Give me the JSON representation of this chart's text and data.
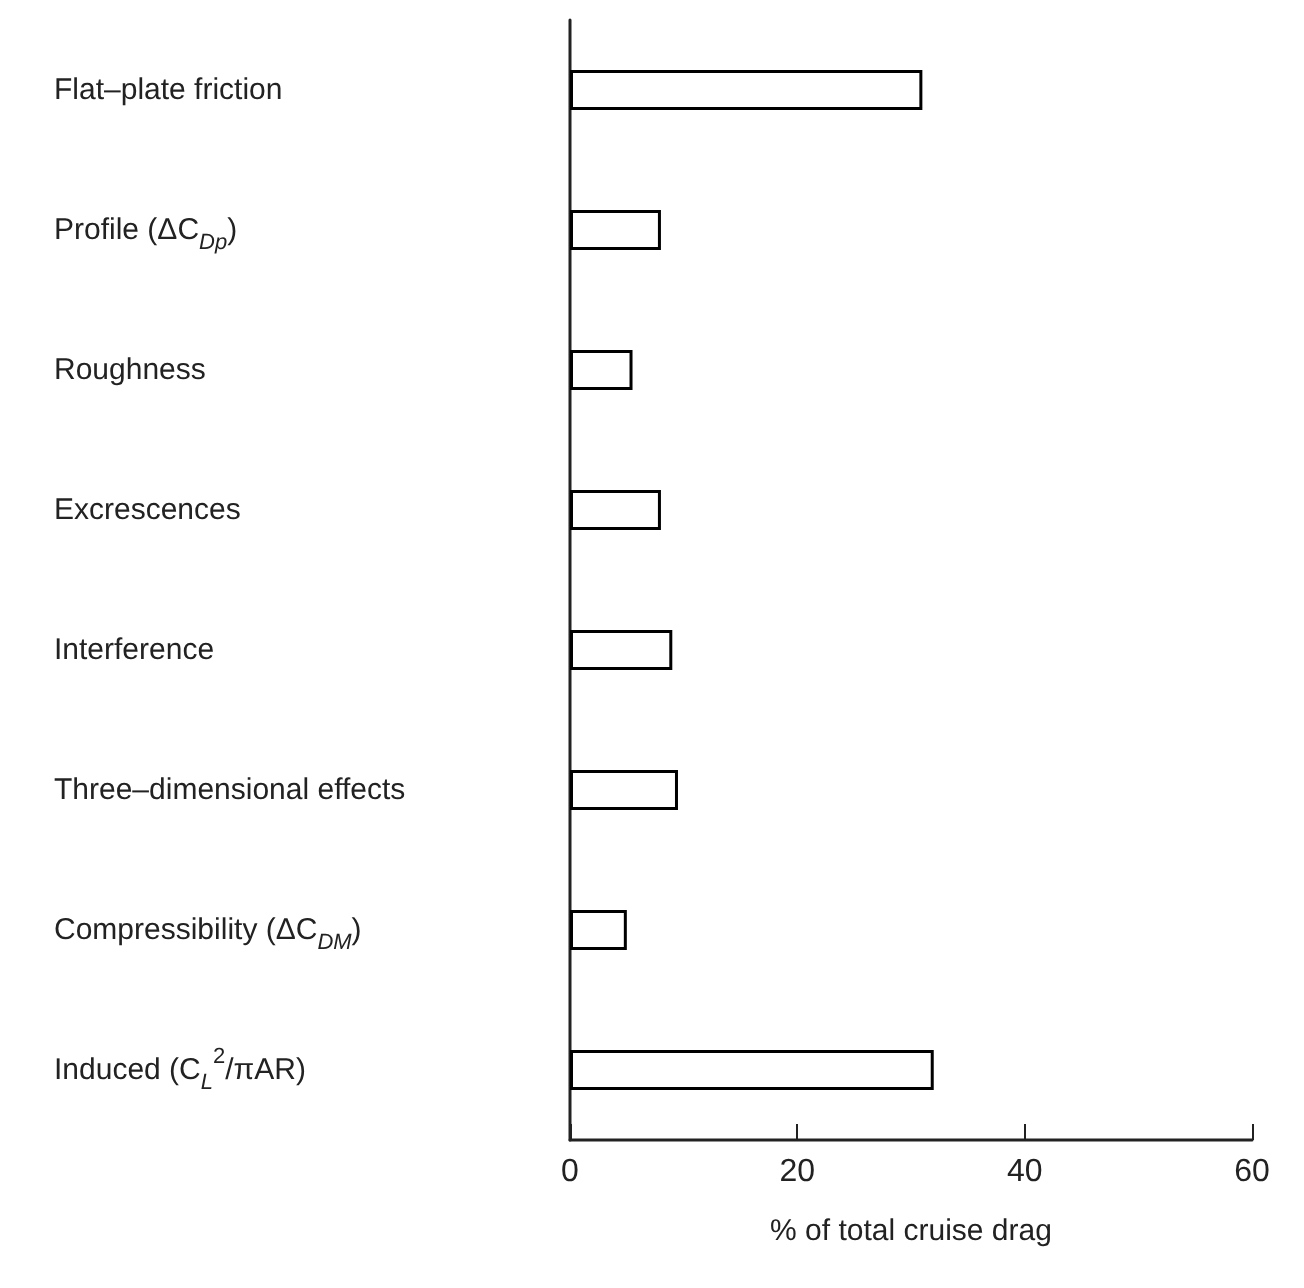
{
  "chart_data": {
    "type": "bar",
    "orientation": "horizontal",
    "categories": [
      "Flat–plate friction",
      "Profile (ΔC$_{Dp}$)",
      "Roughness",
      "Excrescences",
      "Interference",
      "Three–dimensional effects",
      "Compressibility (ΔC$_{DM}$)",
      "Induced (C$_{L}$$^{2}$/πAR)"
    ],
    "values": [
      31,
      8,
      5.5,
      8,
      9,
      9.5,
      5,
      32
    ],
    "color": "#ffffff",
    "xlabel": "% of total cruise drag",
    "xlim": [
      0,
      60
    ],
    "xticks": [
      0,
      20,
      40,
      60
    ],
    "grid": false
  }
}
